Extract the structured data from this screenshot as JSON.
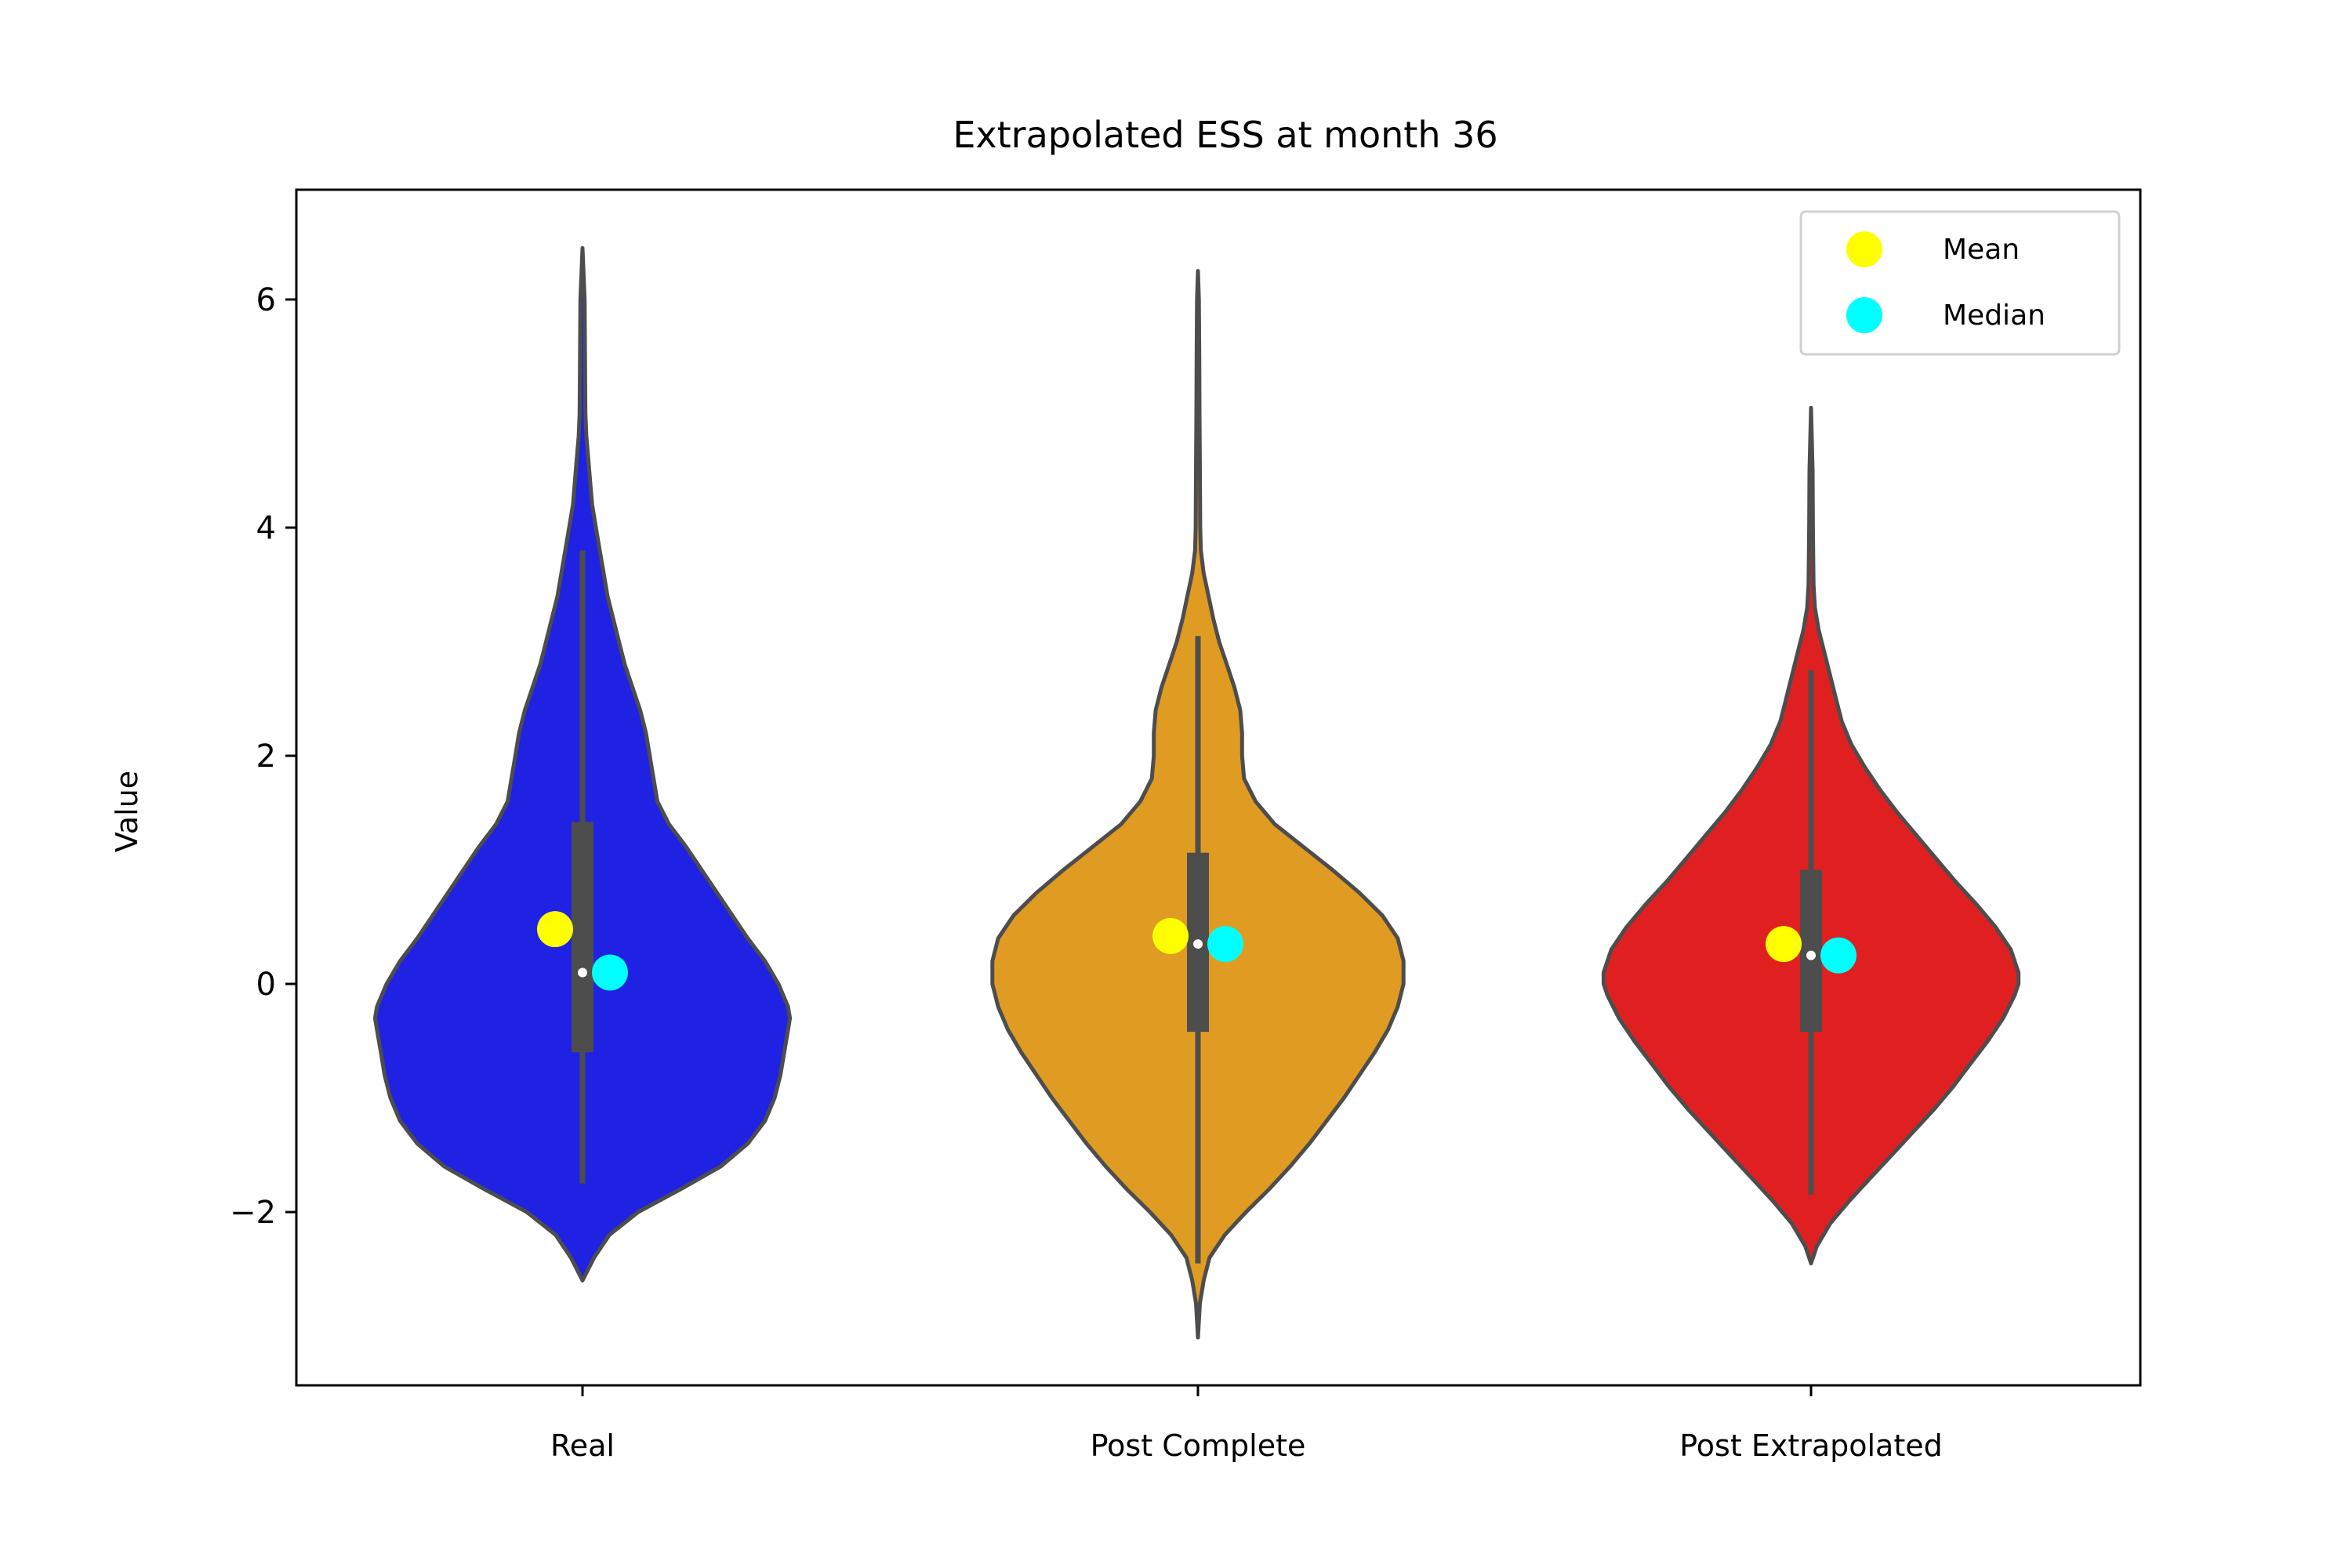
{
  "chart_data": {
    "type": "violin",
    "title": "Extrapolated ESS at month 36",
    "ylabel": "Value",
    "xlabel": "",
    "ylim": [
      -3.55,
      6.95
    ],
    "yticks": [
      -2,
      0,
      2,
      4,
      6
    ],
    "ytick_labels": [
      "−2",
      "0",
      "2",
      "4",
      "6"
    ],
    "grid": false,
    "legend_position": "top-right",
    "categories": [
      "Real",
      "Post Complete",
      "Post Extrapolated"
    ],
    "violins": [
      {
        "category": "Real",
        "color": "#1f22e2",
        "min": -1.75,
        "q1": -0.6,
        "median": 0.1,
        "q3": 1.42,
        "max": 3.8,
        "kde_min": -2.6,
        "kde_max": 6.45,
        "mean_marker": 0.48,
        "median_marker": 0.1,
        "profile": [
          [
            -2.6,
            0.0
          ],
          [
            -2.4,
            0.06
          ],
          [
            -2.2,
            0.14
          ],
          [
            -2.0,
            0.29
          ],
          [
            -1.8,
            0.51
          ],
          [
            -1.6,
            0.72
          ],
          [
            -1.4,
            0.86
          ],
          [
            -1.2,
            0.95
          ],
          [
            -1.0,
            1.0
          ],
          [
            -0.8,
            1.03
          ],
          [
            -0.6,
            1.05
          ],
          [
            -0.4,
            1.07
          ],
          [
            -0.3,
            1.08
          ],
          [
            -0.2,
            1.07
          ],
          [
            0.0,
            1.02
          ],
          [
            0.2,
            0.95
          ],
          [
            0.4,
            0.86
          ],
          [
            0.6,
            0.78
          ],
          [
            0.8,
            0.7
          ],
          [
            1.0,
            0.62
          ],
          [
            1.2,
            0.54
          ],
          [
            1.4,
            0.45
          ],
          [
            1.6,
            0.39
          ],
          [
            1.8,
            0.37
          ],
          [
            2.0,
            0.35
          ],
          [
            2.2,
            0.33
          ],
          [
            2.4,
            0.3
          ],
          [
            2.6,
            0.26
          ],
          [
            2.8,
            0.22
          ],
          [
            3.0,
            0.19
          ],
          [
            3.2,
            0.16
          ],
          [
            3.4,
            0.13
          ],
          [
            3.6,
            0.11
          ],
          [
            3.8,
            0.09
          ],
          [
            4.0,
            0.07
          ],
          [
            4.2,
            0.05
          ],
          [
            4.4,
            0.04
          ],
          [
            4.6,
            0.03
          ],
          [
            4.8,
            0.02
          ],
          [
            5.0,
            0.015
          ],
          [
            5.5,
            0.013
          ],
          [
            6.0,
            0.011
          ],
          [
            6.45,
            0.0
          ]
        ]
      },
      {
        "category": "Post Complete",
        "color": "#e09c22",
        "min": -2.45,
        "q1": -0.42,
        "median": 0.35,
        "q3": 1.15,
        "max": 3.05,
        "kde_min": -3.1,
        "kde_max": 6.25,
        "mean_marker": 0.42,
        "median_marker": 0.35,
        "profile": [
          [
            -3.1,
            0.0
          ],
          [
            -2.8,
            0.01
          ],
          [
            -2.6,
            0.03
          ],
          [
            -2.4,
            0.06
          ],
          [
            -2.2,
            0.14
          ],
          [
            -2.0,
            0.25
          ],
          [
            -1.8,
            0.37
          ],
          [
            -1.6,
            0.48
          ],
          [
            -1.4,
            0.58
          ],
          [
            -1.2,
            0.67
          ],
          [
            -1.0,
            0.76
          ],
          [
            -0.8,
            0.84
          ],
          [
            -0.6,
            0.92
          ],
          [
            -0.4,
            0.99
          ],
          [
            -0.2,
            1.04
          ],
          [
            0.0,
            1.07
          ],
          [
            0.2,
            1.07
          ],
          [
            0.4,
            1.04
          ],
          [
            0.6,
            0.96
          ],
          [
            0.8,
            0.84
          ],
          [
            1.0,
            0.7
          ],
          [
            1.2,
            0.55
          ],
          [
            1.4,
            0.4
          ],
          [
            1.6,
            0.3
          ],
          [
            1.8,
            0.24
          ],
          [
            2.0,
            0.23
          ],
          [
            2.2,
            0.23
          ],
          [
            2.4,
            0.22
          ],
          [
            2.6,
            0.19
          ],
          [
            2.8,
            0.15
          ],
          [
            3.0,
            0.11
          ],
          [
            3.2,
            0.08
          ],
          [
            3.4,
            0.055
          ],
          [
            3.6,
            0.03
          ],
          [
            3.8,
            0.015
          ],
          [
            4.0,
            0.012
          ],
          [
            4.5,
            0.01
          ],
          [
            5.0,
            0.008
          ],
          [
            5.5,
            0.007
          ],
          [
            6.0,
            0.005
          ],
          [
            6.25,
            0.0
          ]
        ]
      },
      {
        "category": "Post Extrapolated",
        "color": "#e02020",
        "min": -1.85,
        "q1": -0.42,
        "median": 0.25,
        "q3": 1.0,
        "max": 2.75,
        "kde_min": -2.45,
        "kde_max": 5.05,
        "mean_marker": 0.35,
        "median_marker": 0.25,
        "profile": [
          [
            -2.45,
            0.0
          ],
          [
            -2.3,
            0.03
          ],
          [
            -2.1,
            0.1
          ],
          [
            -1.9,
            0.2
          ],
          [
            -1.7,
            0.31
          ],
          [
            -1.5,
            0.42
          ],
          [
            -1.3,
            0.53
          ],
          [
            -1.1,
            0.64
          ],
          [
            -0.9,
            0.74
          ],
          [
            -0.7,
            0.83
          ],
          [
            -0.5,
            0.92
          ],
          [
            -0.3,
            1.0
          ],
          [
            -0.1,
            1.06
          ],
          [
            0.0,
            1.08
          ],
          [
            0.1,
            1.08
          ],
          [
            0.3,
            1.04
          ],
          [
            0.5,
            0.96
          ],
          [
            0.7,
            0.86
          ],
          [
            0.9,
            0.75
          ],
          [
            1.1,
            0.65
          ],
          [
            1.3,
            0.55
          ],
          [
            1.5,
            0.45
          ],
          [
            1.7,
            0.36
          ],
          [
            1.9,
            0.28
          ],
          [
            2.1,
            0.21
          ],
          [
            2.3,
            0.16
          ],
          [
            2.5,
            0.13
          ],
          [
            2.7,
            0.1
          ],
          [
            2.9,
            0.07
          ],
          [
            3.1,
            0.04
          ],
          [
            3.3,
            0.02
          ],
          [
            3.5,
            0.013
          ],
          [
            4.0,
            0.01
          ],
          [
            4.5,
            0.008
          ],
          [
            5.05,
            0.0
          ]
        ]
      }
    ],
    "legend": [
      {
        "label": "Mean",
        "color": "#ffff00"
      },
      {
        "label": "Median",
        "color": "#00ffff"
      }
    ]
  }
}
